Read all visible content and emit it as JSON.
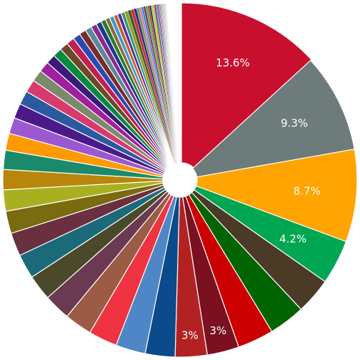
{
  "chart_data": {
    "type": "pie",
    "style": "donut with small center hole; first slice exploded",
    "legend": "none",
    "title": "",
    "slices": [
      {
        "value": 13.6,
        "color": "#c8102e",
        "label": "13.6%"
      },
      {
        "value": 9.3,
        "color": "#6e7b7b",
        "label": "9.3%"
      },
      {
        "value": 8.7,
        "color": "#ffa400",
        "label": "8.7%"
      },
      {
        "value": 4.2,
        "color": "#00a651",
        "label": "4.2%"
      },
      {
        "value": 3.4,
        "color": "#4b3a26",
        "label": ""
      },
      {
        "value": 3.4,
        "color": "#006400",
        "label": ""
      },
      {
        "value": 3.4,
        "color": "#cc0000",
        "label": ""
      },
      {
        "value": 3.0,
        "color": "#7a1020",
        "label": "3%"
      },
      {
        "value": 3.0,
        "color": "#b22222",
        "label": "3%"
      },
      {
        "value": 2.8,
        "color": "#0b4a8b",
        "label": ""
      },
      {
        "value": 2.8,
        "color": "#4f86c6",
        "label": ""
      },
      {
        "value": 2.7,
        "color": "#ef3340",
        "label": ""
      },
      {
        "value": 2.6,
        "color": "#9b5b45",
        "label": ""
      },
      {
        "value": 2.5,
        "color": "#6b3a52",
        "label": ""
      },
      {
        "value": 2.4,
        "color": "#4a4a2a",
        "label": ""
      },
      {
        "value": 2.3,
        "color": "#1b6a7a",
        "label": ""
      },
      {
        "value": 2.2,
        "color": "#6b3040",
        "label": ""
      },
      {
        "value": 2.1,
        "color": "#7a6a10",
        "label": ""
      },
      {
        "value": 2.0,
        "color": "#a8b020",
        "label": ""
      },
      {
        "value": 1.9,
        "color": "#b8860b",
        "label": ""
      },
      {
        "value": 1.8,
        "color": "#1a8a6a",
        "label": ""
      },
      {
        "value": 1.6,
        "color": "#ff9900",
        "label": ""
      },
      {
        "value": 1.5,
        "color": "#9b59d0",
        "label": ""
      },
      {
        "value": 1.4,
        "color": "#4b1a8a",
        "label": ""
      },
      {
        "value": 1.3,
        "color": "#2b5aa0",
        "label": ""
      },
      {
        "value": 1.2,
        "color": "#d63b6b",
        "label": ""
      },
      {
        "value": 1.1,
        "color": "#7a8a6a",
        "label": ""
      },
      {
        "value": 1.0,
        "color": "#a020a0",
        "label": ""
      },
      {
        "value": 0.9,
        "color": "#3a1a7a",
        "label": ""
      },
      {
        "value": 0.85,
        "color": "#008a3a",
        "label": ""
      },
      {
        "value": 0.8,
        "color": "#6a4a2a",
        "label": ""
      },
      {
        "value": 0.75,
        "color": "#c02050",
        "label": ""
      },
      {
        "value": 0.7,
        "color": "#2a4ab0",
        "label": ""
      },
      {
        "value": 0.65,
        "color": "#7a2a2a",
        "label": ""
      },
      {
        "value": 0.6,
        "color": "#5a8a9a",
        "label": ""
      },
      {
        "value": 0.55,
        "color": "#8a2a8a",
        "label": ""
      },
      {
        "value": 0.5,
        "color": "#1a3a8a",
        "label": ""
      },
      {
        "value": 0.45,
        "color": "#2a7a2a",
        "label": ""
      },
      {
        "value": 0.42,
        "color": "#8a6a3a",
        "label": ""
      },
      {
        "value": 0.4,
        "color": "#3a9ad0",
        "label": ""
      },
      {
        "value": 0.38,
        "color": "#c0602a",
        "label": ""
      },
      {
        "value": 0.36,
        "color": "#5a2a9a",
        "label": ""
      },
      {
        "value": 0.34,
        "color": "#2a9a7a",
        "label": ""
      },
      {
        "value": 0.32,
        "color": "#9a9a2a",
        "label": ""
      },
      {
        "value": 0.3,
        "color": "#3a5a2a",
        "label": ""
      },
      {
        "value": 0.28,
        "color": "#d02a2a",
        "label": ""
      },
      {
        "value": 0.26,
        "color": "#2a2a9a",
        "label": ""
      },
      {
        "value": 0.24,
        "color": "#7a9a3a",
        "label": ""
      },
      {
        "value": 0.22,
        "color": "#ca7aca",
        "label": ""
      },
      {
        "value": 0.2,
        "color": "#2a8aca",
        "label": ""
      },
      {
        "value": 0.2,
        "color": "#8a2a4a",
        "label": ""
      },
      {
        "value": 0.18,
        "color": "#4aaa4a",
        "label": ""
      },
      {
        "value": 0.18,
        "color": "#aa4a1a",
        "label": ""
      },
      {
        "value": 0.16,
        "color": "#1a1a6a",
        "label": ""
      },
      {
        "value": 0.16,
        "color": "#9ad03a",
        "label": ""
      },
      {
        "value": 0.14,
        "color": "#d0a01a",
        "label": ""
      },
      {
        "value": 0.14,
        "color": "#6a1a6a",
        "label": ""
      },
      {
        "value": 0.12,
        "color": "#1aaaaa",
        "label": ""
      },
      {
        "value": 0.12,
        "color": "#aa1a7a",
        "label": ""
      },
      {
        "value": 0.1,
        "color": "#5a7aca",
        "label": ""
      },
      {
        "value": 0.1,
        "color": "#ca5a5a",
        "label": ""
      },
      {
        "value": 0.08,
        "color": "#3aca6a",
        "label": ""
      },
      {
        "value": 0.08,
        "color": "#8a8aca",
        "label": ""
      },
      {
        "value": 0.06,
        "color": "#ca9a5a",
        "label": ""
      },
      {
        "value": 0.06,
        "color": "#5aca9a",
        "label": ""
      },
      {
        "value": 0.05,
        "color": "#9a5aca",
        "label": ""
      },
      {
        "value": 0.05,
        "color": "#ca5a9a",
        "label": ""
      },
      {
        "value": 0.04,
        "color": "#5a9aca",
        "label": ""
      },
      {
        "value": 0.04,
        "color": "#9aca5a",
        "label": ""
      },
      {
        "value": 0.03,
        "color": "#ca7a3a",
        "label": ""
      },
      {
        "value": 0.03,
        "color": "#3a7aca",
        "label": ""
      }
    ],
    "remainder_value": 1.3
  }
}
